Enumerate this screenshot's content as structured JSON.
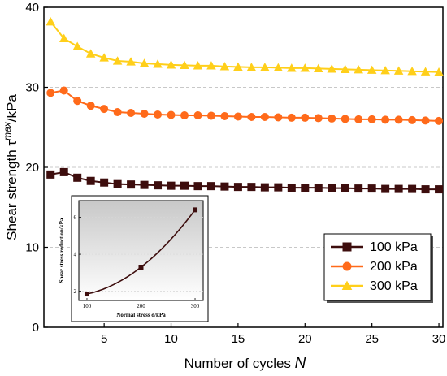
{
  "chart_data": [
    {
      "type": "line",
      "xlabel": "Number of cycles ",
      "xlabel_var": "N",
      "ylabel": "Shear strength τ",
      "ylabel_sup": "max",
      "ylabel_unit": "/kPa",
      "xlim": [
        0.5,
        30.3
      ],
      "ylim": [
        0,
        40
      ],
      "xticks": [
        5,
        10,
        15,
        20,
        25,
        30
      ],
      "yticks": [
        0,
        10,
        20,
        30,
        40
      ],
      "grid": "horizontal dashed",
      "legend_position": "bottom-right",
      "x": [
        1,
        2,
        3,
        4,
        5,
        6,
        7,
        8,
        9,
        10,
        11,
        12,
        13,
        14,
        15,
        16,
        17,
        18,
        19,
        20,
        21,
        22,
        23,
        24,
        25,
        26,
        27,
        28,
        29,
        30
      ],
      "series": [
        {
          "name": "100 kPa",
          "marker": "square",
          "color": "#3d0d0d",
          "values": [
            19.1,
            19.4,
            18.7,
            18.3,
            18.1,
            17.9,
            17.85,
            17.8,
            17.75,
            17.7,
            17.7,
            17.65,
            17.65,
            17.6,
            17.55,
            17.55,
            17.5,
            17.5,
            17.45,
            17.45,
            17.45,
            17.4,
            17.4,
            17.35,
            17.35,
            17.3,
            17.3,
            17.3,
            17.25,
            17.25
          ]
        },
        {
          "name": "200 kPa",
          "marker": "circle",
          "color": "#ff6a1a",
          "values": [
            29.3,
            29.6,
            28.3,
            27.7,
            27.3,
            26.9,
            26.8,
            26.7,
            26.6,
            26.55,
            26.5,
            26.5,
            26.45,
            26.4,
            26.35,
            26.3,
            26.3,
            26.25,
            26.2,
            26.2,
            26.15,
            26.1,
            26.05,
            26.0,
            26.0,
            25.95,
            25.95,
            25.9,
            25.85,
            25.8
          ]
        },
        {
          "name": "300 kPa",
          "marker": "triangle",
          "color": "#ffcf1a",
          "values": [
            38.2,
            36.1,
            35.1,
            34.2,
            33.7,
            33.3,
            33.2,
            33.0,
            32.9,
            32.8,
            32.75,
            32.7,
            32.7,
            32.6,
            32.55,
            32.5,
            32.5,
            32.45,
            32.4,
            32.4,
            32.35,
            32.3,
            32.25,
            32.2,
            32.15,
            32.1,
            32.05,
            32.0,
            31.95,
            31.9
          ]
        }
      ]
    },
    {
      "type": "scatter",
      "inset": true,
      "xlabel": "Normal stress σ/kPa",
      "ylabel": "Shear stress reduction/kPa",
      "xticks": [
        100,
        200,
        300
      ],
      "yticks": [
        2,
        4,
        6
      ],
      "xlim": [
        85,
        315
      ],
      "ylim": [
        1.5,
        6.9
      ],
      "color": "#3d0d0d",
      "x": [
        100,
        200,
        300
      ],
      "values": [
        1.85,
        3.3,
        6.4
      ],
      "fit_curve": true
    }
  ]
}
